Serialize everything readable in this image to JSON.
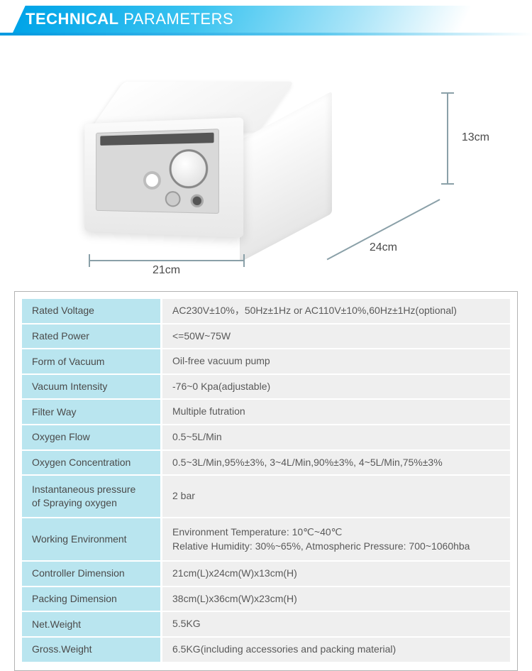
{
  "header": {
    "bold": "TECHNICAL",
    "light": " PARAMETERS"
  },
  "dimensions": {
    "height": "13cm",
    "depth": "24cm",
    "width": "21cm"
  },
  "colors": {
    "label_bg": "#b9e5ef",
    "value_bg": "#efefef",
    "border": "#b3b3b3",
    "dim_line": "#8aa0a8",
    "header_gradient_start": "#00a4e8"
  },
  "specs": [
    {
      "label": "Rated Voltage",
      "value": "AC230V±10%，50Hz±1Hz or AC110V±10%,60Hz±1Hz(optional)"
    },
    {
      "label": "Rated Power",
      "value": "<=50W~75W"
    },
    {
      "label": "Form of Vacuum",
      "value": "Oil-free vacuum pump"
    },
    {
      "label": "Vacuum Intensity",
      "value": "-76~0 Kpa(adjustable)"
    },
    {
      "label": "Filter Way",
      "value": "Multiple futration"
    },
    {
      "label": "Oxygen Flow",
      "value": "0.5~5L/Min"
    },
    {
      "label": "Oxygen Concentration",
      "value": "0.5~3L/Min,95%±3%,   3~4L/Min,90%±3%,   4~5L/Min,75%±3%"
    },
    {
      "label": "Instantaneous pressure\nof Spraying oxygen",
      "value": "2 bar",
      "tall": true
    },
    {
      "label": "Working Environment",
      "value": "Environment Temperature: 10℃~40℃\nRelative Humidity: 30%~65%, Atmospheric Pressure: 700~1060hba",
      "tall": true
    },
    {
      "label": "Controller Dimension",
      "value": "21cm(L)x24cm(W)x13cm(H)"
    },
    {
      "label": "Packing Dimension",
      "value": "38cm(L)x36cm(W)x23cm(H)"
    },
    {
      "label": "Net.Weight",
      "value": "5.5KG"
    },
    {
      "label": "Gross.Weight",
      "value": "6.5KG(including accessories and packing material)"
    }
  ]
}
